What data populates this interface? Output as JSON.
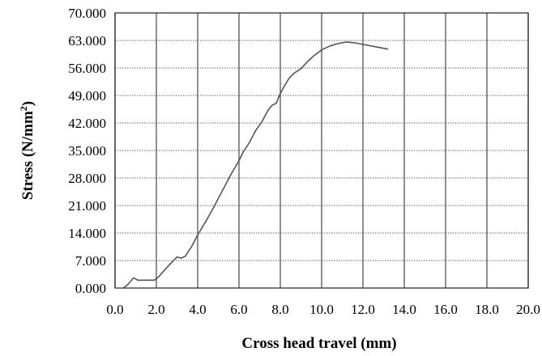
{
  "chart_data": {
    "type": "line",
    "title": "",
    "xlabel": "Cross head travel (mm)",
    "ylabel_main": "Stress (N/mm",
    "ylabel_sup": "2",
    "ylabel_close": ")",
    "xlim": [
      0,
      20
    ],
    "ylim": [
      0,
      70
    ],
    "grid": true,
    "x_ticks": [
      0,
      2,
      4,
      6,
      8,
      10,
      12,
      14,
      16,
      18,
      20
    ],
    "x_tick_labels": [
      "0.0",
      "2.0",
      "4.0",
      "6.0",
      "8.0",
      "10.0",
      "12.0",
      "14.0",
      "16.0",
      "18.0",
      "20.0"
    ],
    "y_ticks": [
      0,
      7,
      14,
      21,
      28,
      35,
      42,
      49,
      56,
      63,
      70
    ],
    "y_tick_labels": [
      "0.000",
      "7.000",
      "14.000",
      "21.000",
      "28.000",
      "35.000",
      "42.000",
      "49.000",
      "56.000",
      "63.000",
      "70.000"
    ],
    "series": [
      {
        "color": "#555555",
        "x": [
          0.4,
          0.6,
          0.9,
          1.1,
          1.5,
          1.9,
          2.1,
          2.4,
          2.7,
          3.0,
          3.2,
          3.4,
          3.7,
          4.0,
          4.4,
          4.8,
          5.2,
          5.6,
          6.0,
          6.2,
          6.5,
          6.8,
          7.1,
          7.4,
          7.6,
          7.8,
          8.0,
          8.2,
          8.4,
          8.7,
          9.0,
          9.3,
          9.6,
          10.0,
          10.4,
          10.8,
          11.2,
          11.6,
          12.0,
          12.4,
          12.8,
          13.2
        ],
        "y": [
          0.0,
          0.8,
          2.6,
          2.0,
          2.0,
          2.0,
          2.8,
          4.6,
          6.3,
          7.9,
          7.6,
          8.1,
          10.5,
          13.5,
          17.0,
          20.8,
          24.8,
          28.8,
          32.4,
          34.6,
          37.0,
          40.0,
          42.2,
          45.2,
          46.5,
          47.0,
          49.5,
          51.4,
          53.2,
          54.8,
          55.8,
          57.5,
          59.0,
          60.6,
          61.6,
          62.2,
          62.6,
          62.4,
          62.0,
          61.6,
          61.2,
          60.8
        ]
      }
    ]
  }
}
